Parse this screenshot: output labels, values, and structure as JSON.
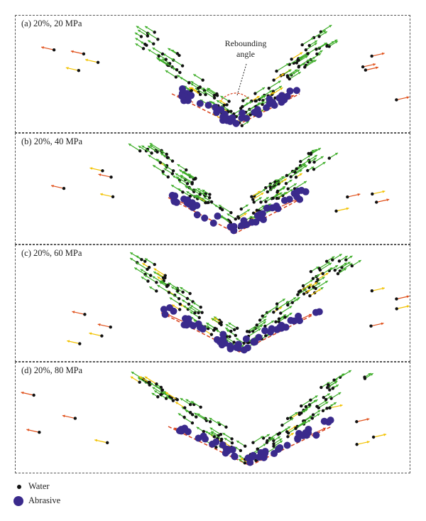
{
  "panels": [
    {
      "label": "(a)  20%, 20 MPa",
      "pressure": 20
    },
    {
      "label": "(b)  20%, 40 MPa",
      "pressure": 40
    },
    {
      "label": "(c)  20%, 60 MPa",
      "pressure": 60
    },
    {
      "label": "(d)  20%, 80 MPa",
      "pressure": 80
    }
  ],
  "annotation": {
    "line1": "Rebounding",
    "line2": "angle"
  },
  "legend": {
    "water": "Water",
    "abrasive": "Abrasive"
  },
  "colors": {
    "water": "#111111",
    "abrasive": "#3a2a8c",
    "vector_green": "#3fae2a",
    "vector_yellow": "#f2c200",
    "vector_orange": "#e0501a",
    "profile_line": "#d8401a",
    "panel_border": "#555555"
  }
}
